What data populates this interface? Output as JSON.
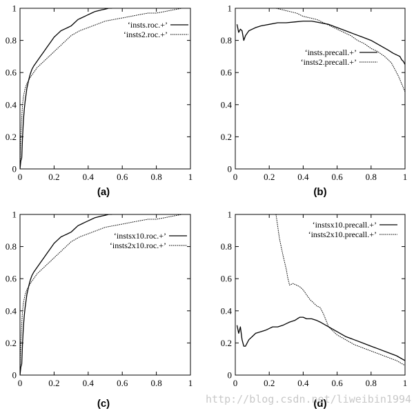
{
  "watermark": "http://blog.csdn.net/liweibin1994",
  "chart_data": [
    {
      "type": "line",
      "panel_label": "(a)",
      "xlim": [
        0,
        1
      ],
      "ylim": [
        0,
        1
      ],
      "xticks": [
        0,
        0.2,
        0.4,
        0.6,
        0.8,
        1
      ],
      "yticks": [
        0,
        0.2,
        0.4,
        0.6,
        0.8,
        1
      ],
      "xtick_labels": [
        "0",
        "0.2",
        "0.4",
        "0.6",
        "0.8",
        "1"
      ],
      "ytick_labels": [
        "0",
        "0.2",
        "0.4",
        "0.6",
        "0.8",
        "1"
      ],
      "legend_position": "top-right",
      "series": [
        {
          "name": "‘insts.roc.+’",
          "style": "solid",
          "x": [
            0,
            0.005,
            0.01,
            0.015,
            0.02,
            0.025,
            0.03,
            0.04,
            0.05,
            0.06,
            0.07,
            0.08,
            0.1,
            0.12,
            0.14,
            0.16,
            0.18,
            0.2,
            0.22,
            0.24,
            0.26,
            0.28,
            0.3,
            0.32,
            0.34,
            0.36,
            0.38,
            0.4,
            0.42,
            0.44,
            0.46,
            0.48,
            0.5,
            0.52,
            0.54
          ],
          "y": [
            0,
            0.05,
            0.07,
            0.2,
            0.3,
            0.37,
            0.42,
            0.5,
            0.55,
            0.59,
            0.62,
            0.64,
            0.67,
            0.7,
            0.73,
            0.76,
            0.79,
            0.82,
            0.84,
            0.86,
            0.87,
            0.88,
            0.89,
            0.91,
            0.93,
            0.94,
            0.95,
            0.96,
            0.97,
            0.98,
            0.985,
            0.99,
            0.995,
            1,
            1
          ]
        },
        {
          "name": "‘insts2.roc.+’",
          "style": "dotted",
          "x": [
            0,
            0.005,
            0.01,
            0.015,
            0.02,
            0.03,
            0.04,
            0.05,
            0.06,
            0.08,
            0.1,
            0.12,
            0.14,
            0.16,
            0.18,
            0.2,
            0.22,
            0.24,
            0.26,
            0.28,
            0.3,
            0.35,
            0.4,
            0.45,
            0.5,
            0.55,
            0.6,
            0.65,
            0.7,
            0.75,
            0.8,
            0.85,
            0.9,
            0.95,
            1
          ],
          "y": [
            0,
            0.2,
            0.32,
            0.4,
            0.45,
            0.5,
            0.53,
            0.55,
            0.57,
            0.6,
            0.63,
            0.65,
            0.67,
            0.69,
            0.71,
            0.73,
            0.75,
            0.77,
            0.79,
            0.81,
            0.83,
            0.86,
            0.88,
            0.9,
            0.92,
            0.93,
            0.94,
            0.95,
            0.96,
            0.97,
            0.97,
            0.98,
            0.99,
            1,
            1
          ]
        }
      ]
    },
    {
      "type": "line",
      "panel_label": "(b)",
      "xlim": [
        0,
        1
      ],
      "ylim": [
        0,
        1
      ],
      "xticks": [
        0,
        0.2,
        0.4,
        0.6,
        0.8,
        1
      ],
      "yticks": [
        0,
        0.2,
        0.4,
        0.6,
        0.8,
        1
      ],
      "xtick_labels": [
        "0",
        "0.2",
        "0.4",
        "0.6",
        "0.8",
        "1"
      ],
      "ytick_labels": [
        "0",
        "0.2",
        "0.4",
        "0.6",
        "0.8",
        "1"
      ],
      "legend_position": "middle-right",
      "series": [
        {
          "name": "‘insts.precall.+’",
          "style": "solid",
          "x": [
            0.01,
            0.02,
            0.03,
            0.04,
            0.05,
            0.06,
            0.08,
            0.1,
            0.12,
            0.15,
            0.2,
            0.25,
            0.3,
            0.35,
            0.4,
            0.45,
            0.5,
            0.55,
            0.6,
            0.65,
            0.7,
            0.75,
            0.8,
            0.85,
            0.9,
            0.93,
            0.95,
            0.97,
            0.98,
            0.99,
            1
          ],
          "y": [
            0.9,
            0.85,
            0.87,
            0.86,
            0.8,
            0.83,
            0.86,
            0.87,
            0.88,
            0.89,
            0.9,
            0.91,
            0.91,
            0.915,
            0.92,
            0.92,
            0.91,
            0.9,
            0.88,
            0.86,
            0.84,
            0.82,
            0.8,
            0.77,
            0.74,
            0.72,
            0.71,
            0.7,
            0.68,
            0.67,
            0.65
          ]
        },
        {
          "name": "‘insts2.precall.+’",
          "style": "dotted",
          "x": [
            0.24,
            0.28,
            0.32,
            0.36,
            0.4,
            0.44,
            0.48,
            0.52,
            0.56,
            0.6,
            0.64,
            0.68,
            0.72,
            0.76,
            0.8,
            0.84,
            0.88,
            0.92,
            0.94,
            0.96,
            0.98,
            1
          ],
          "y": [
            1,
            0.99,
            0.98,
            0.97,
            0.95,
            0.94,
            0.93,
            0.91,
            0.89,
            0.87,
            0.85,
            0.83,
            0.8,
            0.78,
            0.75,
            0.73,
            0.7,
            0.66,
            0.62,
            0.58,
            0.53,
            0.48
          ]
        }
      ]
    },
    {
      "type": "line",
      "panel_label": "(c)",
      "xlim": [
        0,
        1
      ],
      "ylim": [
        0,
        1
      ],
      "xticks": [
        0,
        0.2,
        0.4,
        0.6,
        0.8,
        1
      ],
      "yticks": [
        0,
        0.2,
        0.4,
        0.6,
        0.8,
        1
      ],
      "xtick_labels": [
        "0",
        "0.2",
        "0.4",
        "0.6",
        "0.8",
        "1"
      ],
      "ytick_labels": [
        "0",
        "0.2",
        "0.4",
        "0.6",
        "0.8",
        "1"
      ],
      "legend_position": "top-right",
      "series": [
        {
          "name": "‘instsx10.roc.+’",
          "style": "solid",
          "x": [
            0,
            0.005,
            0.01,
            0.015,
            0.02,
            0.025,
            0.03,
            0.04,
            0.05,
            0.06,
            0.07,
            0.08,
            0.1,
            0.12,
            0.14,
            0.16,
            0.18,
            0.2,
            0.22,
            0.24,
            0.26,
            0.28,
            0.3,
            0.32,
            0.34,
            0.36,
            0.38,
            0.4,
            0.42,
            0.44,
            0.46,
            0.48,
            0.5,
            0.52,
            0.54
          ],
          "y": [
            0,
            0.05,
            0.07,
            0.2,
            0.3,
            0.37,
            0.42,
            0.5,
            0.55,
            0.59,
            0.62,
            0.64,
            0.67,
            0.7,
            0.73,
            0.76,
            0.79,
            0.82,
            0.84,
            0.86,
            0.87,
            0.88,
            0.89,
            0.91,
            0.93,
            0.94,
            0.95,
            0.96,
            0.97,
            0.98,
            0.985,
            0.99,
            0.995,
            1,
            1
          ]
        },
        {
          "name": "‘insts2x10.roc.+’",
          "style": "dotted",
          "x": [
            0,
            0.005,
            0.01,
            0.015,
            0.02,
            0.03,
            0.04,
            0.05,
            0.06,
            0.08,
            0.1,
            0.12,
            0.14,
            0.16,
            0.18,
            0.2,
            0.22,
            0.24,
            0.26,
            0.28,
            0.3,
            0.35,
            0.4,
            0.45,
            0.5,
            0.55,
            0.6,
            0.65,
            0.7,
            0.75,
            0.8,
            0.85,
            0.9,
            0.95,
            1
          ],
          "y": [
            0,
            0.2,
            0.32,
            0.4,
            0.45,
            0.5,
            0.53,
            0.55,
            0.57,
            0.6,
            0.63,
            0.65,
            0.67,
            0.69,
            0.71,
            0.73,
            0.75,
            0.77,
            0.79,
            0.81,
            0.83,
            0.86,
            0.88,
            0.9,
            0.92,
            0.93,
            0.94,
            0.95,
            0.96,
            0.97,
            0.97,
            0.98,
            0.99,
            1,
            1
          ]
        }
      ]
    },
    {
      "type": "line",
      "panel_label": "(d)",
      "xlim": [
        0,
        1
      ],
      "ylim": [
        0,
        1
      ],
      "xticks": [
        0,
        0.2,
        0.4,
        0.6,
        0.8,
        1
      ],
      "yticks": [
        0,
        0.2,
        0.4,
        0.6,
        0.8,
        1
      ],
      "xtick_labels": [
        "0",
        "0.2",
        "0.4",
        "0.6",
        "0.8",
        "1"
      ],
      "ytick_labels": [
        "0",
        "0.2",
        "0.4",
        "0.6",
        "0.8",
        "1"
      ],
      "legend_position": "top-right",
      "series": [
        {
          "name": "‘instsx10.precall.+’",
          "style": "solid",
          "x": [
            0.01,
            0.02,
            0.03,
            0.04,
            0.05,
            0.06,
            0.07,
            0.08,
            0.1,
            0.12,
            0.15,
            0.18,
            0.2,
            0.22,
            0.25,
            0.28,
            0.3,
            0.32,
            0.35,
            0.38,
            0.4,
            0.42,
            0.45,
            0.48,
            0.5,
            0.55,
            0.6,
            0.65,
            0.7,
            0.75,
            0.8,
            0.85,
            0.9,
            0.95,
            1
          ],
          "y": [
            0.31,
            0.26,
            0.3,
            0.22,
            0.18,
            0.18,
            0.2,
            0.22,
            0.24,
            0.26,
            0.27,
            0.28,
            0.29,
            0.3,
            0.3,
            0.31,
            0.32,
            0.33,
            0.34,
            0.36,
            0.36,
            0.35,
            0.35,
            0.34,
            0.33,
            0.3,
            0.27,
            0.24,
            0.22,
            0.2,
            0.18,
            0.16,
            0.14,
            0.12,
            0.09
          ]
        },
        {
          "name": "‘insts2x10.precall.+’",
          "style": "dotted",
          "x": [
            0.24,
            0.26,
            0.28,
            0.3,
            0.31,
            0.32,
            0.34,
            0.36,
            0.38,
            0.4,
            0.42,
            0.44,
            0.46,
            0.48,
            0.5,
            0.52,
            0.55,
            0.6,
            0.65,
            0.7,
            0.75,
            0.8,
            0.85,
            0.9,
            0.95,
            1
          ],
          "y": [
            1,
            0.85,
            0.75,
            0.66,
            0.6,
            0.56,
            0.57,
            0.56,
            0.55,
            0.53,
            0.5,
            0.47,
            0.45,
            0.43,
            0.42,
            0.38,
            0.3,
            0.25,
            0.22,
            0.19,
            0.17,
            0.15,
            0.13,
            0.11,
            0.09,
            0.06
          ]
        }
      ]
    }
  ]
}
